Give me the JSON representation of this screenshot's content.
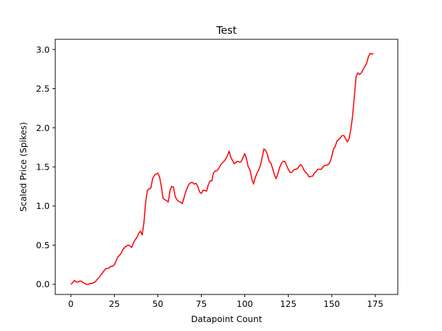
{
  "chart_data": {
    "type": "line",
    "title": "Test",
    "xlabel": "Datapoint Count",
    "ylabel": "Scaled Price (Spikes)",
    "xlim": [
      -9,
      188
    ],
    "ylim": [
      -0.13,
      3.13
    ],
    "x_ticks": [
      0,
      25,
      50,
      75,
      100,
      125,
      150,
      175
    ],
    "x_tick_labels": [
      "0",
      "25",
      "50",
      "75",
      "100",
      "125",
      "150",
      "175"
    ],
    "y_ticks": [
      0.0,
      0.5,
      1.0,
      1.5,
      2.0,
      2.5,
      3.0
    ],
    "y_tick_labels": [
      "0.0",
      "0.5",
      "1.0",
      "1.5",
      "2.0",
      "2.5",
      "3.0"
    ],
    "grid": false,
    "series": [
      {
        "color": "#ff0000",
        "points": [
          [
            0,
            0.0
          ],
          [
            1,
            0.02
          ],
          [
            2,
            0.05
          ],
          [
            3,
            0.03
          ],
          [
            4,
            0.03
          ],
          [
            5,
            0.04
          ],
          [
            6,
            0.04
          ],
          [
            7,
            0.02
          ],
          [
            8,
            0.01
          ],
          [
            9,
            0.0
          ],
          [
            10,
            0.0
          ],
          [
            11,
            0.01
          ],
          [
            12,
            0.01
          ],
          [
            13,
            0.02
          ],
          [
            14,
            0.03
          ],
          [
            15,
            0.06
          ],
          [
            16,
            0.08
          ],
          [
            17,
            0.11
          ],
          [
            18,
            0.14
          ],
          [
            19,
            0.17
          ],
          [
            20,
            0.2
          ],
          [
            21,
            0.2
          ],
          [
            22,
            0.21
          ],
          [
            23,
            0.23
          ],
          [
            24,
            0.23
          ],
          [
            25,
            0.25
          ],
          [
            26,
            0.3
          ],
          [
            27,
            0.35
          ],
          [
            28,
            0.37
          ],
          [
            29,
            0.4
          ],
          [
            30,
            0.45
          ],
          [
            31,
            0.47
          ],
          [
            32,
            0.49
          ],
          [
            33,
            0.5
          ],
          [
            34,
            0.49
          ],
          [
            35,
            0.47
          ],
          [
            36,
            0.53
          ],
          [
            37,
            0.57
          ],
          [
            38,
            0.6
          ],
          [
            39,
            0.65
          ],
          [
            40,
            0.68
          ],
          [
            41,
            0.63
          ],
          [
            42,
            0.79
          ],
          [
            43,
            1.05
          ],
          [
            44,
            1.2
          ],
          [
            45,
            1.22
          ],
          [
            46,
            1.23
          ],
          [
            47,
            1.35
          ],
          [
            48,
            1.39
          ],
          [
            49,
            1.41
          ],
          [
            50,
            1.42
          ],
          [
            51,
            1.37
          ],
          [
            52,
            1.25
          ],
          [
            53,
            1.1
          ],
          [
            54,
            1.08
          ],
          [
            55,
            1.07
          ],
          [
            56,
            1.05
          ],
          [
            57,
            1.2
          ],
          [
            58,
            1.25
          ],
          [
            59,
            1.24
          ],
          [
            60,
            1.12
          ],
          [
            61,
            1.08
          ],
          [
            62,
            1.06
          ],
          [
            63,
            1.05
          ],
          [
            64,
            1.03
          ],
          [
            65,
            1.1
          ],
          [
            66,
            1.18
          ],
          [
            67,
            1.24
          ],
          [
            68,
            1.28
          ],
          [
            69,
            1.3
          ],
          [
            70,
            1.3
          ],
          [
            71,
            1.28
          ],
          [
            72,
            1.29
          ],
          [
            73,
            1.25
          ],
          [
            74,
            1.18
          ],
          [
            75,
            1.16
          ],
          [
            76,
            1.2
          ],
          [
            77,
            1.2
          ],
          [
            78,
            1.19
          ],
          [
            79,
            1.27
          ],
          [
            80,
            1.32
          ],
          [
            81,
            1.32
          ],
          [
            82,
            1.42
          ],
          [
            83,
            1.45
          ],
          [
            84,
            1.45
          ],
          [
            85,
            1.48
          ],
          [
            86,
            1.52
          ],
          [
            87,
            1.55
          ],
          [
            88,
            1.57
          ],
          [
            89,
            1.6
          ],
          [
            90,
            1.64
          ],
          [
            91,
            1.7
          ],
          [
            92,
            1.62
          ],
          [
            93,
            1.58
          ],
          [
            94,
            1.54
          ],
          [
            95,
            1.56
          ],
          [
            96,
            1.57
          ],
          [
            97,
            1.56
          ],
          [
            98,
            1.57
          ],
          [
            99,
            1.62
          ],
          [
            100,
            1.67
          ],
          [
            101,
            1.6
          ],
          [
            102,
            1.5
          ],
          [
            103,
            1.46
          ],
          [
            104,
            1.35
          ],
          [
            105,
            1.28
          ],
          [
            106,
            1.36
          ],
          [
            107,
            1.42
          ],
          [
            108,
            1.46
          ],
          [
            109,
            1.52
          ],
          [
            110,
            1.62
          ],
          [
            111,
            1.73
          ],
          [
            112,
            1.71
          ],
          [
            113,
            1.66
          ],
          [
            114,
            1.57
          ],
          [
            115,
            1.55
          ],
          [
            116,
            1.48
          ],
          [
            117,
            1.4
          ],
          [
            118,
            1.35
          ],
          [
            119,
            1.41
          ],
          [
            120,
            1.49
          ],
          [
            121,
            1.54
          ],
          [
            122,
            1.57
          ],
          [
            123,
            1.57
          ],
          [
            124,
            1.52
          ],
          [
            125,
            1.47
          ],
          [
            126,
            1.43
          ],
          [
            127,
            1.43
          ],
          [
            128,
            1.46
          ],
          [
            129,
            1.47
          ],
          [
            130,
            1.47
          ],
          [
            131,
            1.5
          ],
          [
            132,
            1.53
          ],
          [
            133,
            1.51
          ],
          [
            134,
            1.46
          ],
          [
            135,
            1.43
          ],
          [
            136,
            1.41
          ],
          [
            137,
            1.37
          ],
          [
            138,
            1.38
          ],
          [
            139,
            1.38
          ],
          [
            140,
            1.42
          ],
          [
            141,
            1.44
          ],
          [
            142,
            1.47
          ],
          [
            143,
            1.47
          ],
          [
            144,
            1.47
          ],
          [
            145,
            1.5
          ],
          [
            146,
            1.52
          ],
          [
            147,
            1.52
          ],
          [
            148,
            1.53
          ],
          [
            149,
            1.56
          ],
          [
            150,
            1.63
          ],
          [
            151,
            1.73
          ],
          [
            152,
            1.76
          ],
          [
            153,
            1.83
          ],
          [
            154,
            1.85
          ],
          [
            155,
            1.87
          ],
          [
            156,
            1.9
          ],
          [
            157,
            1.9
          ],
          [
            158,
            1.86
          ],
          [
            159,
            1.82
          ],
          [
            160,
            1.86
          ],
          [
            161,
            1.98
          ],
          [
            162,
            2.15
          ],
          [
            163,
            2.4
          ],
          [
            164,
            2.65
          ],
          [
            165,
            2.7
          ],
          [
            166,
            2.68
          ],
          [
            167,
            2.7
          ],
          [
            168,
            2.74
          ],
          [
            169,
            2.78
          ],
          [
            170,
            2.82
          ],
          [
            171,
            2.9
          ],
          [
            172,
            2.95
          ],
          [
            173,
            2.94
          ],
          [
            174,
            2.95
          ]
        ]
      }
    ]
  }
}
